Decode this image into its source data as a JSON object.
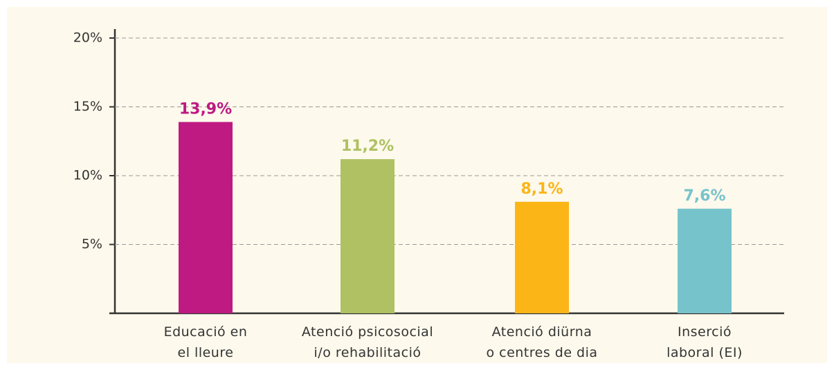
{
  "chart_data": {
    "type": "bar",
    "categories": [
      "Educació en\nel lleure",
      "Atenció psicosocial\ni/o rehabilitació",
      "Atenció diürna\no centres de dia",
      "Inserció\nlaboral (EI)"
    ],
    "values": [
      13.9,
      11.2,
      8.1,
      7.6
    ],
    "value_labels": [
      "13,9%",
      "11,2%",
      "8,1%",
      "7,6%"
    ],
    "colors": [
      "#be1a82",
      "#afc163",
      "#fbb516",
      "#77c3cc"
    ],
    "ylim": [
      0,
      20
    ],
    "yticks": [
      {
        "value": 5,
        "label": "5%"
      },
      {
        "value": 10,
        "label": "10%"
      },
      {
        "value": 15,
        "label": "15%"
      },
      {
        "value": 20,
        "label": "20%"
      }
    ],
    "grid": true
  }
}
